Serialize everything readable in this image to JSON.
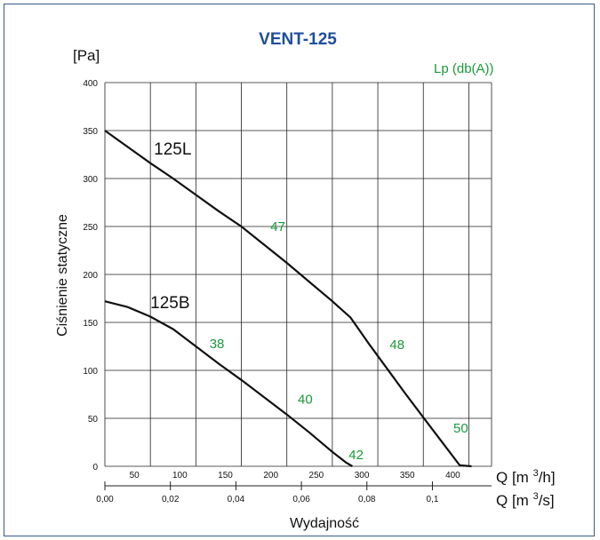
{
  "chart_data": {
    "type": "line",
    "title": "VENT-125",
    "y_unit_label": "[Pa]",
    "ylabel": "Ciśnienie statyczne",
    "xlabel": "Wydajność",
    "lp_label": "Lp (db(A))",
    "x_unit_label": "Q [m³/h]",
    "x2_unit_label": "Q [m³/s]",
    "ylim": [
      0,
      400
    ],
    "xlim": [
      0,
      425
    ],
    "y_ticks": [
      0,
      50,
      100,
      150,
      200,
      250,
      300,
      350,
      400
    ],
    "x_ticks": [
      50,
      100,
      150,
      200,
      250,
      300,
      350,
      400
    ],
    "x_grid": [
      0,
      50,
      100,
      150,
      200,
      250,
      300,
      350,
      400,
      425
    ],
    "x2_ticks": [
      {
        "label": "0,00",
        "m3s": 0.0
      },
      {
        "label": "0,02",
        "m3s": 0.02
      },
      {
        "label": "0,04",
        "m3s": 0.04
      },
      {
        "label": "0,06",
        "m3s": 0.06
      },
      {
        "label": "0,08",
        "m3s": 0.08
      },
      {
        "label": "0,1",
        "m3s": 0.1
      }
    ],
    "grid": true,
    "series": [
      {
        "name": "125L",
        "x": [
          0,
          25,
          50,
          75,
          100,
          125,
          150,
          175,
          200,
          225,
          250,
          270,
          290,
          310,
          330,
          350,
          370,
          390,
          403
        ],
        "y": [
          350,
          333,
          316,
          300,
          283,
          266,
          250,
          231,
          212,
          192,
          172,
          155,
          128,
          102,
          76,
          51,
          26,
          1,
          0
        ],
        "noise_labels": [
          {
            "text": "47",
            "x": 182,
            "y": 250
          },
          {
            "text": "48",
            "x": 313,
            "y": 127
          },
          {
            "text": "50",
            "x": 383,
            "y": 40
          }
        ]
      },
      {
        "name": "125B",
        "x": [
          0,
          25,
          50,
          75,
          100,
          125,
          150,
          175,
          200,
          225,
          250,
          265,
          272
        ],
        "y": [
          172,
          166,
          156,
          143,
          125,
          107,
          90,
          72,
          54,
          35,
          15,
          4,
          0
        ],
        "noise_labels": [
          {
            "text": "38",
            "x": 115,
            "y": 128
          },
          {
            "text": "40",
            "x": 212,
            "y": 70
          },
          {
            "text": "42",
            "x": 268,
            "y": 12
          }
        ]
      }
    ],
    "colors": {
      "title": "#1f4e9c",
      "noise": "#1a9a3a",
      "frame": "#3a5a8c"
    }
  }
}
